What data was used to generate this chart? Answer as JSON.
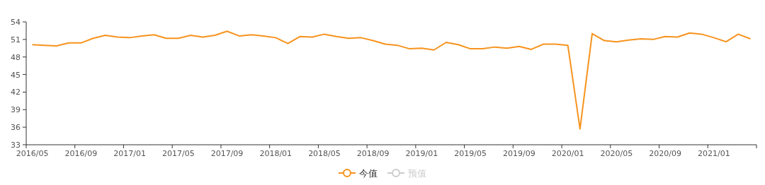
{
  "chart_data": {
    "type": "line",
    "categories": [
      "2016/05",
      null,
      null,
      null,
      "2016/09",
      null,
      null,
      null,
      "2017/01",
      null,
      null,
      null,
      "2017/05",
      null,
      null,
      null,
      "2017/09",
      null,
      null,
      null,
      "2018/01",
      null,
      null,
      null,
      "2018/05",
      null,
      null,
      null,
      "2018/09",
      null,
      null,
      null,
      "2019/01",
      null,
      null,
      null,
      "2019/05",
      null,
      null,
      null,
      "2019/09",
      null,
      null,
      null,
      "2020/01",
      null,
      null,
      null,
      "2020/05",
      null,
      null,
      null,
      "2020/09",
      null,
      null,
      null,
      "2021/01",
      null,
      null,
      null
    ],
    "series": [
      {
        "name": "今值",
        "color": "#f7931e",
        "values": [
          50.1,
          50.0,
          49.9,
          50.4,
          50.4,
          51.2,
          51.7,
          51.4,
          51.3,
          51.6,
          51.8,
          51.2,
          51.2,
          51.7,
          51.4,
          51.7,
          52.4,
          51.6,
          51.8,
          51.6,
          51.3,
          50.3,
          51.5,
          51.4,
          51.9,
          51.5,
          51.2,
          51.3,
          50.8,
          50.2,
          50.0,
          49.4,
          49.5,
          49.2,
          50.5,
          50.1,
          49.4,
          49.4,
          49.7,
          49.5,
          49.8,
          49.3,
          50.2,
          50.2,
          50.0,
          35.7,
          52.0,
          50.8,
          50.6,
          50.9,
          51.1,
          51.0,
          51.5,
          51.4,
          52.1,
          51.9,
          51.3,
          50.6,
          51.9,
          51.1
        ]
      },
      {
        "name": "预值",
        "color": "#cccccc",
        "values": [
          null,
          null,
          null,
          null,
          null,
          null,
          null,
          null,
          null,
          null,
          null,
          null,
          null,
          null,
          null,
          null,
          null,
          null,
          null,
          null,
          null,
          null,
          null,
          null,
          null,
          null,
          null,
          null,
          null,
          null,
          null,
          null,
          null,
          null,
          null,
          null,
          null,
          null,
          null,
          null,
          null,
          null,
          null,
          null,
          null,
          null,
          null,
          null,
          null,
          null,
          null,
          null,
          null,
          null,
          null,
          null,
          null,
          null,
          null,
          null
        ]
      }
    ],
    "ylim": [
      33,
      54
    ],
    "yticks": [
      33,
      36,
      39,
      42,
      45,
      48,
      51,
      54
    ],
    "grid": false,
    "legend": "bottom",
    "marker": "none",
    "line_style": "solid"
  }
}
